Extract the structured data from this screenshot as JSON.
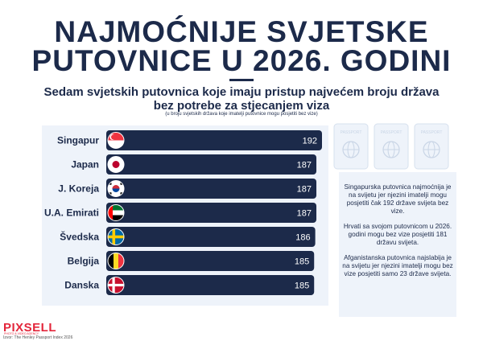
{
  "title_line1": "NAJMOĆNIJE SVJETSKE",
  "title_line2": "PUTOVNICE U 2026. GODINI",
  "subtitle_line1": "Sedam svjetskih putovnica koje imaju pristup najvećem broju država",
  "subtitle_line2": "bez potrebe za stjecanjem viza",
  "note": "(u broju svjetskih država koje imatelji putovnice mogu posjetiti bez vize)",
  "chart_data": {
    "type": "bar",
    "orientation": "horizontal",
    "categories": [
      "Singapur",
      "Japan",
      "J. Koreja",
      "U.A. Emirati",
      "Švedska",
      "Belgija",
      "Danska"
    ],
    "values": [
      192,
      187,
      187,
      187,
      186,
      185,
      185
    ],
    "flags": [
      "singapore",
      "japan",
      "south-korea",
      "uae",
      "sweden",
      "belgium",
      "denmark"
    ],
    "value_labels": true
  },
  "passport_label": "PASSPORT",
  "info": [
    "Singapurska putovnica najmoćnija je na svijetu jer njezini imatelji mogu posjetiti čak 192 države svijeta bez vize.",
    "Hrvati sa svojom putovnicom u 2026. godini mogu bez vize posjetiti 181 državu svijeta.",
    "Afganistanska putovnica najslabija je na svijetu jer njezini imatelji mogu bez vize posjetiti samo 23 države svijeta."
  ],
  "logo": "PIXSELL",
  "logo_sub": "PHOTO & VIDEO AGENCY",
  "source": "Izvor: The Henley Passport Index 2026",
  "colors": {
    "navy": "#1c2a4a",
    "panel": "#eef3fa",
    "logo_red": "#e3263b"
  }
}
